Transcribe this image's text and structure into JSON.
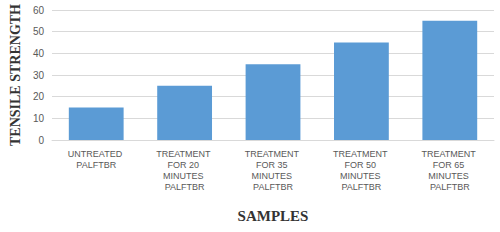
{
  "chart_data": {
    "type": "bar",
    "categories": [
      "UNTREATED PALFTBR",
      "TREATMENT FOR 20 MINUTES PALFTBR",
      "TREATMENT FOR 35 MINUTES PALFTBR",
      "TREATMENT FOR 50 MINUTES PALFTBR",
      "TREATMENT FOR 65 MINUTES PALFTBR"
    ],
    "values": [
      15,
      25,
      35,
      45,
      55
    ],
    "color": "#5b9bd5",
    "xlabel": "SAMPLES",
    "ylabel": "TENSILE STRENGTH",
    "ylim": [
      0,
      60
    ],
    "yticks": [
      0,
      10,
      20,
      30,
      40,
      50,
      60
    ],
    "grid": true
  }
}
